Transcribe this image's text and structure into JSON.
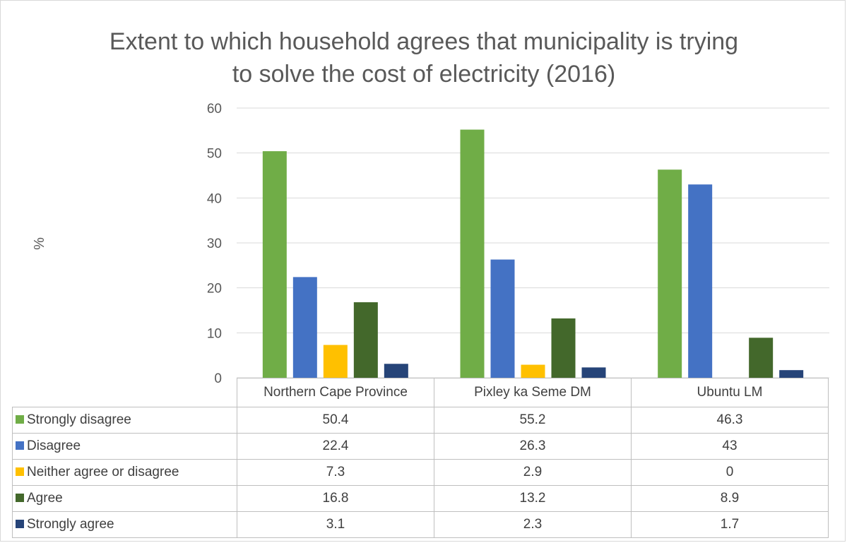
{
  "chart_data": {
    "type": "bar",
    "title": "Extent to which household agrees that municipality is trying to solve the cost of electricity (2016)",
    "title_lines": [
      "Extent to which household agrees that municipality is trying",
      "to solve the cost of electricity (2016)"
    ],
    "xlabel": "",
    "ylabel": "%",
    "ylim": [
      0,
      60
    ],
    "yticks": [
      "0",
      "10",
      "20",
      "30",
      "40",
      "50",
      "60"
    ],
    "grid": true,
    "legend": "data-table",
    "categories": [
      "Northern Cape Province",
      "Pixley ka Seme DM",
      "Ubuntu LM"
    ],
    "series": [
      {
        "name": "Strongly disagree",
        "color": "#70ad47",
        "values": [
          50.4,
          55.2,
          46.3
        ],
        "labels": [
          "50.4",
          "55.2",
          "46.3"
        ]
      },
      {
        "name": "Disagree",
        "color": "#4472c4",
        "values": [
          22.4,
          26.3,
          43
        ],
        "labels": [
          "22.4",
          "26.3",
          "43"
        ]
      },
      {
        "name": "Neither agree or disagree",
        "color": "#ffc000",
        "values": [
          7.3,
          2.9,
          0
        ],
        "labels": [
          "7.3",
          "2.9",
          "0"
        ]
      },
      {
        "name": "Agree",
        "color": "#43682b",
        "values": [
          16.8,
          13.2,
          8.9
        ],
        "labels": [
          "16.8",
          "13.2",
          "8.9"
        ]
      },
      {
        "name": "Strongly agree",
        "color": "#264478",
        "values": [
          3.1,
          2.3,
          1.7
        ],
        "labels": [
          "3.1",
          "2.3",
          "1.7"
        ]
      }
    ]
  }
}
